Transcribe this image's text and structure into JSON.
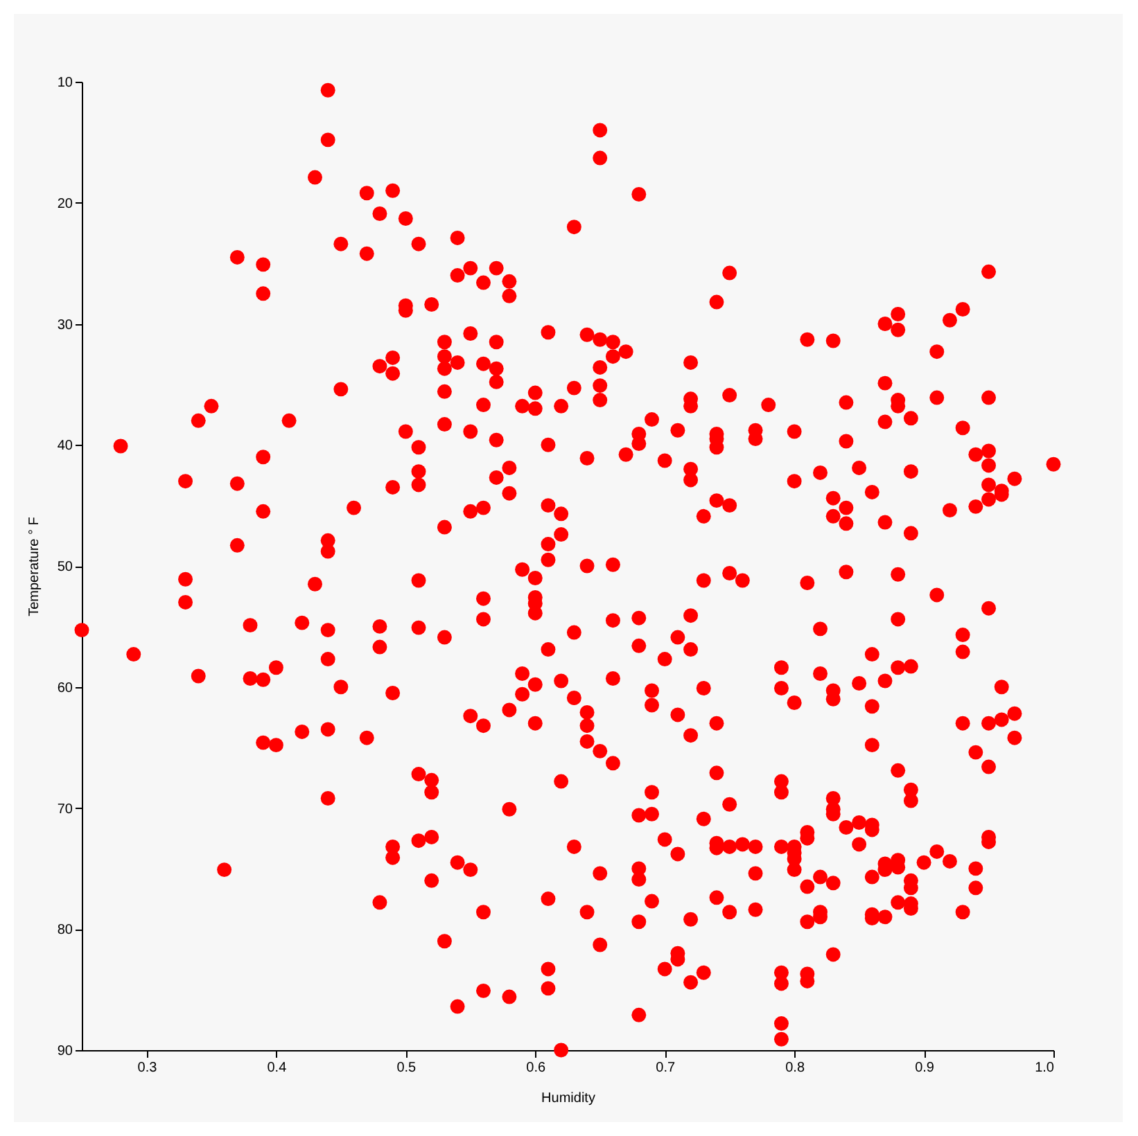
{
  "chart_data": {
    "type": "scatter",
    "xlabel": "Humidity",
    "ylabel": "Temperature ° F",
    "color": "#ff0000",
    "marker": "circle",
    "grid": false,
    "legend": false,
    "xlim": [
      0.25,
      1.0
    ],
    "xticks": [
      0.3,
      0.4,
      0.5,
      0.6,
      0.7,
      0.8,
      0.9,
      {
        "value": 1.0,
        "label": "1.0"
      }
    ],
    "ylim": [
      90,
      10
    ],
    "yticks": [
      10,
      20,
      30,
      40,
      50,
      60,
      70,
      80,
      90
    ],
    "x": [
      0.25,
      0.28,
      0.29,
      0.33,
      0.33,
      0.33,
      0.34,
      0.34,
      0.35,
      0.36,
      0.37,
      0.37,
      0.37,
      0.38,
      0.38,
      0.39,
      0.39,
      0.39,
      0.39,
      0.39,
      0.39,
      0.4,
      0.4,
      0.41,
      0.42,
      0.42,
      0.43,
      0.43,
      0.44,
      0.44,
      0.44,
      0.44,
      0.44,
      0.44,
      0.44,
      0.44,
      0.45,
      0.45,
      0.45,
      0.46,
      0.47,
      0.47,
      0.47,
      0.48,
      0.48,
      0.48,
      0.48,
      0.48,
      0.49,
      0.49,
      0.49,
      0.49,
      0.49,
      0.49,
      0.49,
      0.5,
      0.5,
      0.5,
      0.5,
      0.51,
      0.51,
      0.51,
      0.51,
      0.51,
      0.51,
      0.51,
      0.51,
      0.52,
      0.52,
      0.52,
      0.52,
      0.52,
      0.53,
      0.53,
      0.53,
      0.53,
      0.53,
      0.53,
      0.53,
      0.53,
      0.54,
      0.54,
      0.54,
      0.54,
      0.54,
      0.55,
      0.55,
      0.55,
      0.55,
      0.55,
      0.55,
      0.56,
      0.56,
      0.56,
      0.56,
      0.56,
      0.56,
      0.56,
      0.56,
      0.56,
      0.57,
      0.57,
      0.57,
      0.57,
      0.57,
      0.57,
      0.58,
      0.58,
      0.58,
      0.58,
      0.58,
      0.58,
      0.58,
      0.59,
      0.59,
      0.59,
      0.59,
      0.6,
      0.6,
      0.6,
      0.6,
      0.6,
      0.6,
      0.6,
      0.6,
      0.61,
      0.61,
      0.61,
      0.61,
      0.61,
      0.61,
      0.61,
      0.61,
      0.61,
      0.62,
      0.62,
      0.62,
      0.62,
      0.62,
      0.62,
      0.63,
      0.63,
      0.63,
      0.63,
      0.63,
      0.64,
      0.64,
      0.64,
      0.64,
      0.64,
      0.64,
      0.64,
      0.65,
      0.65,
      0.65,
      0.65,
      0.65,
      0.65,
      0.65,
      0.65,
      0.65,
      0.66,
      0.66,
      0.66,
      0.66,
      0.66,
      0.66,
      0.67,
      0.67,
      0.68,
      0.68,
      0.68,
      0.68,
      0.68,
      0.68,
      0.68,
      0.68,
      0.68,
      0.68,
      0.69,
      0.69,
      0.69,
      0.69,
      0.69,
      0.69,
      0.7,
      0.7,
      0.7,
      0.7,
      0.71,
      0.71,
      0.71,
      0.71,
      0.71,
      0.71,
      0.72,
      0.72,
      0.72,
      0.72,
      0.72,
      0.72,
      0.72,
      0.72,
      0.72,
      0.72,
      0.73,
      0.73,
      0.73,
      0.73,
      0.73,
      0.74,
      0.74,
      0.74,
      0.74,
      0.74,
      0.74,
      0.74,
      0.74,
      0.74,
      0.74,
      0.75,
      0.75,
      0.75,
      0.75,
      0.75,
      0.75,
      0.75,
      0.76,
      0.76,
      0.77,
      0.77,
      0.77,
      0.77,
      0.77,
      0.78,
      0.79,
      0.79,
      0.79,
      0.79,
      0.79,
      0.79,
      0.79,
      0.79,
      0.79,
      0.8,
      0.8,
      0.8,
      0.8,
      0.8,
      0.8,
      0.8,
      0.81,
      0.81,
      0.81,
      0.81,
      0.81,
      0.81,
      0.81,
      0.81,
      0.82,
      0.82,
      0.82,
      0.82,
      0.82,
      0.82,
      0.83,
      0.83,
      0.83,
      0.83,
      0.83,
      0.83,
      0.83,
      0.83,
      0.83,
      0.83,
      0.84,
      0.84,
      0.84,
      0.84,
      0.84,
      0.84,
      0.85,
      0.85,
      0.85,
      0.85,
      0.86,
      0.86,
      0.86,
      0.86,
      0.86,
      0.86,
      0.86,
      0.86,
      0.86,
      0.87,
      0.87,
      0.87,
      0.87,
      0.87,
      0.87,
      0.87,
      0.87,
      0.88,
      0.88,
      0.88,
      0.88,
      0.88,
      0.88,
      0.88,
      0.88,
      0.88,
      0.88,
      0.88,
      0.89,
      0.89,
      0.89,
      0.89,
      0.89,
      0.89,
      0.89,
      0.89,
      0.89,
      0.89,
      0.9,
      0.91,
      0.91,
      0.91,
      0.91,
      0.92,
      0.92,
      0.92,
      0.93,
      0.93,
      0.93,
      0.93,
      0.93,
      0.93,
      0.94,
      0.94,
      0.94,
      0.94,
      0.94,
      0.95,
      0.95,
      0.95,
      0.95,
      0.95,
      0.95,
      0.95,
      0.95,
      0.95,
      0.95,
      0.95,
      0.96,
      0.96,
      0.96,
      0.96,
      0.97,
      0.97,
      0.97,
      1.0
    ],
    "values": [
      55.3,
      40.1,
      57.3,
      43.0,
      51.1,
      53.0,
      38.0,
      59.1,
      36.8,
      75.1,
      24.5,
      43.2,
      48.3,
      54.9,
      59.3,
      25.1,
      27.5,
      41.0,
      45.5,
      59.4,
      64.6,
      58.4,
      64.8,
      38.0,
      54.7,
      63.7,
      17.9,
      51.5,
      10.7,
      14.8,
      47.9,
      48.8,
      55.3,
      57.7,
      63.5,
      69.2,
      23.4,
      35.4,
      60.0,
      45.2,
      19.2,
      24.2,
      64.2,
      20.9,
      33.5,
      55.0,
      56.7,
      77.8,
      19.0,
      32.8,
      34.1,
      43.5,
      60.5,
      73.2,
      74.1,
      21.3,
      28.5,
      28.9,
      38.9,
      23.4,
      40.2,
      42.2,
      43.3,
      51.2,
      55.1,
      67.2,
      72.7,
      28.4,
      67.7,
      68.7,
      72.4,
      76.0,
      31.5,
      32.7,
      33.7,
      35.6,
      38.3,
      46.8,
      55.9,
      81.0,
      22.9,
      26.0,
      33.2,
      74.5,
      86.4,
      25.4,
      30.8,
      38.9,
      45.5,
      62.4,
      75.1,
      26.6,
      33.3,
      36.7,
      45.2,
      52.7,
      54.4,
      63.2,
      78.6,
      85.1,
      25.4,
      31.5,
      33.7,
      34.8,
      39.6,
      42.7,
      26.5,
      27.7,
      41.9,
      44.0,
      61.9,
      70.1,
      85.6,
      36.8,
      50.3,
      58.9,
      60.6,
      35.7,
      37.0,
      51.0,
      52.6,
      53.1,
      53.9,
      59.8,
      63.0,
      30.7,
      40.0,
      45.0,
      48.2,
      49.5,
      56.9,
      77.5,
      83.3,
      84.9,
      36.8,
      45.7,
      47.4,
      59.5,
      67.8,
      90.0,
      22.0,
      35.3,
      55.5,
      60.9,
      73.2,
      30.9,
      41.1,
      50.0,
      62.1,
      63.2,
      64.5,
      78.6,
      14.0,
      16.3,
      31.3,
      33.6,
      35.1,
      36.3,
      65.3,
      75.4,
      81.3,
      31.5,
      32.7,
      49.9,
      54.5,
      59.3,
      66.3,
      32.3,
      40.8,
      19.3,
      39.1,
      39.9,
      54.3,
      56.6,
      70.6,
      75.0,
      75.9,
      79.4,
      87.1,
      37.9,
      60.3,
      61.5,
      68.7,
      70.5,
      77.7,
      41.3,
      57.7,
      72.6,
      83.3,
      38.8,
      55.9,
      62.3,
      73.8,
      82.0,
      82.5,
      33.2,
      36.2,
      36.8,
      42.0,
      42.9,
      54.1,
      56.9,
      64.0,
      79.2,
      84.4,
      45.9,
      51.2,
      60.1,
      70.9,
      83.6,
      28.2,
      39.1,
      39.5,
      40.2,
      44.6,
      63.0,
      67.1,
      72.9,
      73.3,
      77.4,
      25.8,
      35.9,
      45.0,
      50.6,
      69.7,
      73.2,
      78.6,
      51.2,
      73.0,
      38.8,
      39.5,
      73.2,
      75.4,
      78.4,
      36.7,
      58.4,
      60.1,
      67.8,
      68.7,
      73.2,
      83.6,
      84.5,
      87.8,
      89.1,
      38.9,
      43.0,
      61.3,
      73.2,
      73.7,
      74.2,
      75.1,
      31.3,
      51.4,
      72.0,
      72.5,
      76.5,
      79.4,
      83.7,
      84.3,
      42.3,
      55.2,
      58.9,
      75.7,
      78.6,
      79.0,
      31.4,
      44.4,
      45.9,
      60.3,
      61.0,
      69.2,
      70.1,
      70.5,
      76.2,
      82.1,
      36.5,
      39.7,
      45.2,
      46.5,
      50.5,
      71.6,
      41.9,
      59.7,
      71.2,
      73.0,
      43.9,
      57.3,
      61.6,
      64.8,
      71.4,
      71.8,
      75.7,
      78.8,
      79.1,
      30.0,
      34.9,
      38.1,
      46.4,
      59.5,
      74.6,
      75.1,
      79.0,
      29.2,
      30.5,
      36.3,
      36.8,
      50.7,
      54.4,
      58.4,
      66.9,
      74.3,
      74.9,
      77.8,
      37.8,
      42.2,
      47.3,
      58.3,
      68.5,
      69.4,
      76.0,
      76.6,
      77.9,
      78.3,
      74.5,
      32.3,
      36.1,
      52.4,
      73.6,
      29.7,
      45.4,
      74.4,
      28.8,
      38.6,
      55.7,
      57.1,
      63.0,
      78.6,
      40.8,
      45.1,
      65.4,
      75.0,
      76.6,
      25.7,
      36.1,
      40.5,
      41.7,
      43.3,
      44.5,
      53.5,
      63.0,
      66.6,
      72.4,
      72.8,
      43.8,
      44.1,
      60.0,
      62.7,
      42.8,
      62.2,
      64.2,
      41.6
    ]
  }
}
